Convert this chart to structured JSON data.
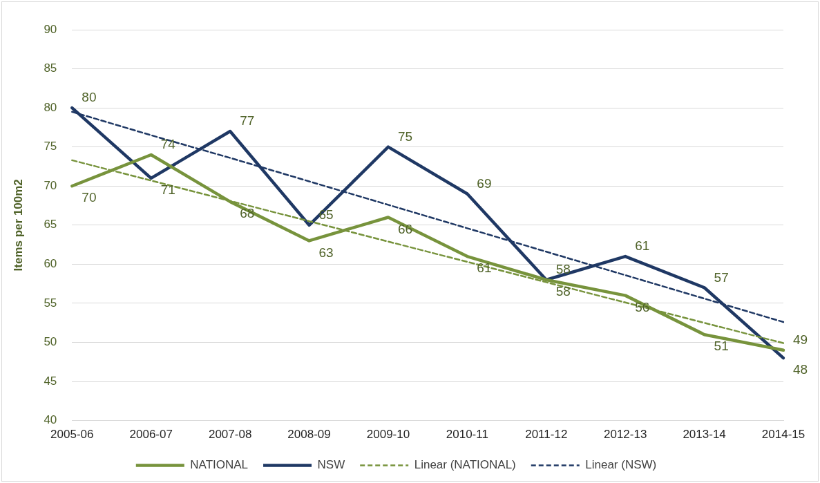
{
  "chart_data": {
    "type": "line",
    "ylabel": "Items per 100m2",
    "categories": [
      "2005-06",
      "2006-07",
      "2007-08",
      "2008-09",
      "2009-10",
      "2010-11",
      "2011-12",
      "2012-13",
      "2013-14",
      "2014-15"
    ],
    "series": [
      {
        "name": "NATIONAL",
        "color": "#77933c",
        "values": [
          70,
          74,
          68,
          63,
          66,
          61,
          58,
          56,
          51,
          49
        ],
        "value_labels": [
          "70",
          "74",
          "68",
          "63",
          "66",
          "61",
          "58",
          "56",
          "51",
          "49"
        ]
      },
      {
        "name": "NSW",
        "color": "#1f3864",
        "values": [
          80,
          71,
          77,
          65,
          75,
          69,
          58,
          61,
          57,
          48
        ],
        "value_labels": [
          "80",
          "71",
          "77",
          "65",
          "75",
          "69",
          "58",
          "61",
          "57",
          "48"
        ]
      },
      {
        "name": "Linear (NATIONAL)",
        "color": "#77933c",
        "line_style": "dashed",
        "values": [
          73.3,
          70.7,
          68.1,
          65.5,
          62.9,
          60.3,
          57.7,
          55.1,
          52.5,
          49.9
        ]
      },
      {
        "name": "Linear (NSW)",
        "color": "#1f3864",
        "line_style": "dashed",
        "values": [
          79.5,
          76.5,
          73.6,
          70.6,
          67.6,
          64.6,
          61.6,
          58.6,
          55.6,
          52.6
        ]
      }
    ],
    "ylim": [
      40,
      90
    ],
    "yticks": [
      40,
      45,
      50,
      55,
      60,
      65,
      70,
      75,
      80,
      85,
      90
    ],
    "grid": "y",
    "legend": "bottom",
    "marker": "none",
    "line_style": "solid"
  }
}
